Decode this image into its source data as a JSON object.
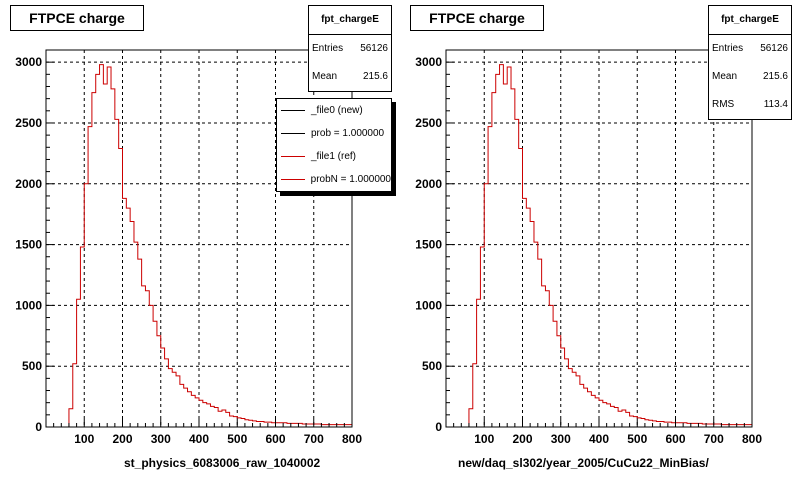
{
  "panels": [
    {
      "title": "FTPCE charge",
      "stats": {
        "name": "fpt_chargeE",
        "rows": [
          {
            "label": "Entries",
            "value": "56126"
          },
          {
            "label": "Mean",
            "value": "215.6"
          }
        ]
      },
      "legend": [
        {
          "label": "_file0 (new)",
          "color": "#000000"
        },
        {
          "label": "prob = 1.000000",
          "color": "#000000"
        },
        {
          "label": "_file1 (ref)",
          "color": "#cc0000"
        },
        {
          "label": "probN = 1.000000",
          "color": "#cc0000"
        }
      ],
      "xlabel": "st_physics_6083006_raw_1040002"
    },
    {
      "title": "FTPCE charge",
      "stats": {
        "name": "fpt_chargeE",
        "rows": [
          {
            "label": "Entries",
            "value": "56126"
          },
          {
            "label": "Mean",
            "value": "215.6"
          },
          {
            "label": "RMS",
            "value": "113.4"
          }
        ]
      },
      "xlabel": "new/daq_sl302/year_2005/CuCu22_MinBias/"
    }
  ],
  "chart_data": [
    {
      "type": "histogram",
      "title": "FTPCE charge",
      "xlabel": "st_physics_6083006_raw_1040002",
      "xlim": [
        0,
        800
      ],
      "ylim": [
        0,
        3100
      ],
      "x_ticks": [
        100,
        200,
        300,
        400,
        500,
        600,
        700,
        800
      ],
      "y_ticks": [
        0,
        500,
        1000,
        1500,
        2000,
        2500,
        3000
      ],
      "grid": true,
      "series_color": "#cc0000",
      "bin_width": 10,
      "bin_start": 0,
      "values": [
        0,
        0,
        0,
        0,
        0,
        0,
        150,
        520,
        1050,
        1480,
        2000,
        2470,
        2750,
        2900,
        2980,
        2820,
        2960,
        2780,
        2530,
        2290,
        1880,
        1800,
        1690,
        1520,
        1380,
        1160,
        1120,
        1000,
        870,
        750,
        650,
        560,
        480,
        450,
        420,
        350,
        320,
        290,
        260,
        240,
        220,
        200,
        190,
        170,
        160,
        130,
        140,
        120,
        90,
        85,
        75,
        70,
        60,
        55,
        50,
        45,
        45,
        40,
        40,
        35,
        35,
        35,
        35,
        30,
        30,
        30,
        30,
        25,
        25,
        25,
        25,
        25,
        20,
        20,
        20,
        20,
        20,
        20,
        20,
        20
      ]
    },
    {
      "type": "histogram",
      "title": "FTPCE charge",
      "xlabel": "new/daq_sl302/year_2005/CuCu22_MinBias/",
      "xlim": [
        0,
        800
      ],
      "ylim": [
        0,
        3100
      ],
      "x_ticks": [
        100,
        200,
        300,
        400,
        500,
        600,
        700,
        800
      ],
      "y_ticks": [
        0,
        500,
        1000,
        1500,
        2000,
        2500,
        3000
      ],
      "grid": true,
      "series_color": "#cc0000",
      "bin_width": 10,
      "bin_start": 0,
      "values": [
        0,
        0,
        0,
        0,
        0,
        0,
        150,
        520,
        1050,
        1480,
        2000,
        2470,
        2750,
        2900,
        2980,
        2820,
        2960,
        2780,
        2530,
        2290,
        1880,
        1800,
        1690,
        1520,
        1380,
        1160,
        1120,
        1000,
        870,
        750,
        650,
        560,
        480,
        450,
        420,
        350,
        320,
        290,
        260,
        240,
        220,
        200,
        190,
        170,
        160,
        130,
        140,
        120,
        90,
        85,
        75,
        70,
        60,
        55,
        50,
        45,
        45,
        40,
        40,
        35,
        35,
        35,
        35,
        30,
        30,
        30,
        30,
        25,
        25,
        25,
        25,
        25,
        20,
        20,
        20,
        20,
        20,
        20,
        20,
        20
      ]
    }
  ]
}
